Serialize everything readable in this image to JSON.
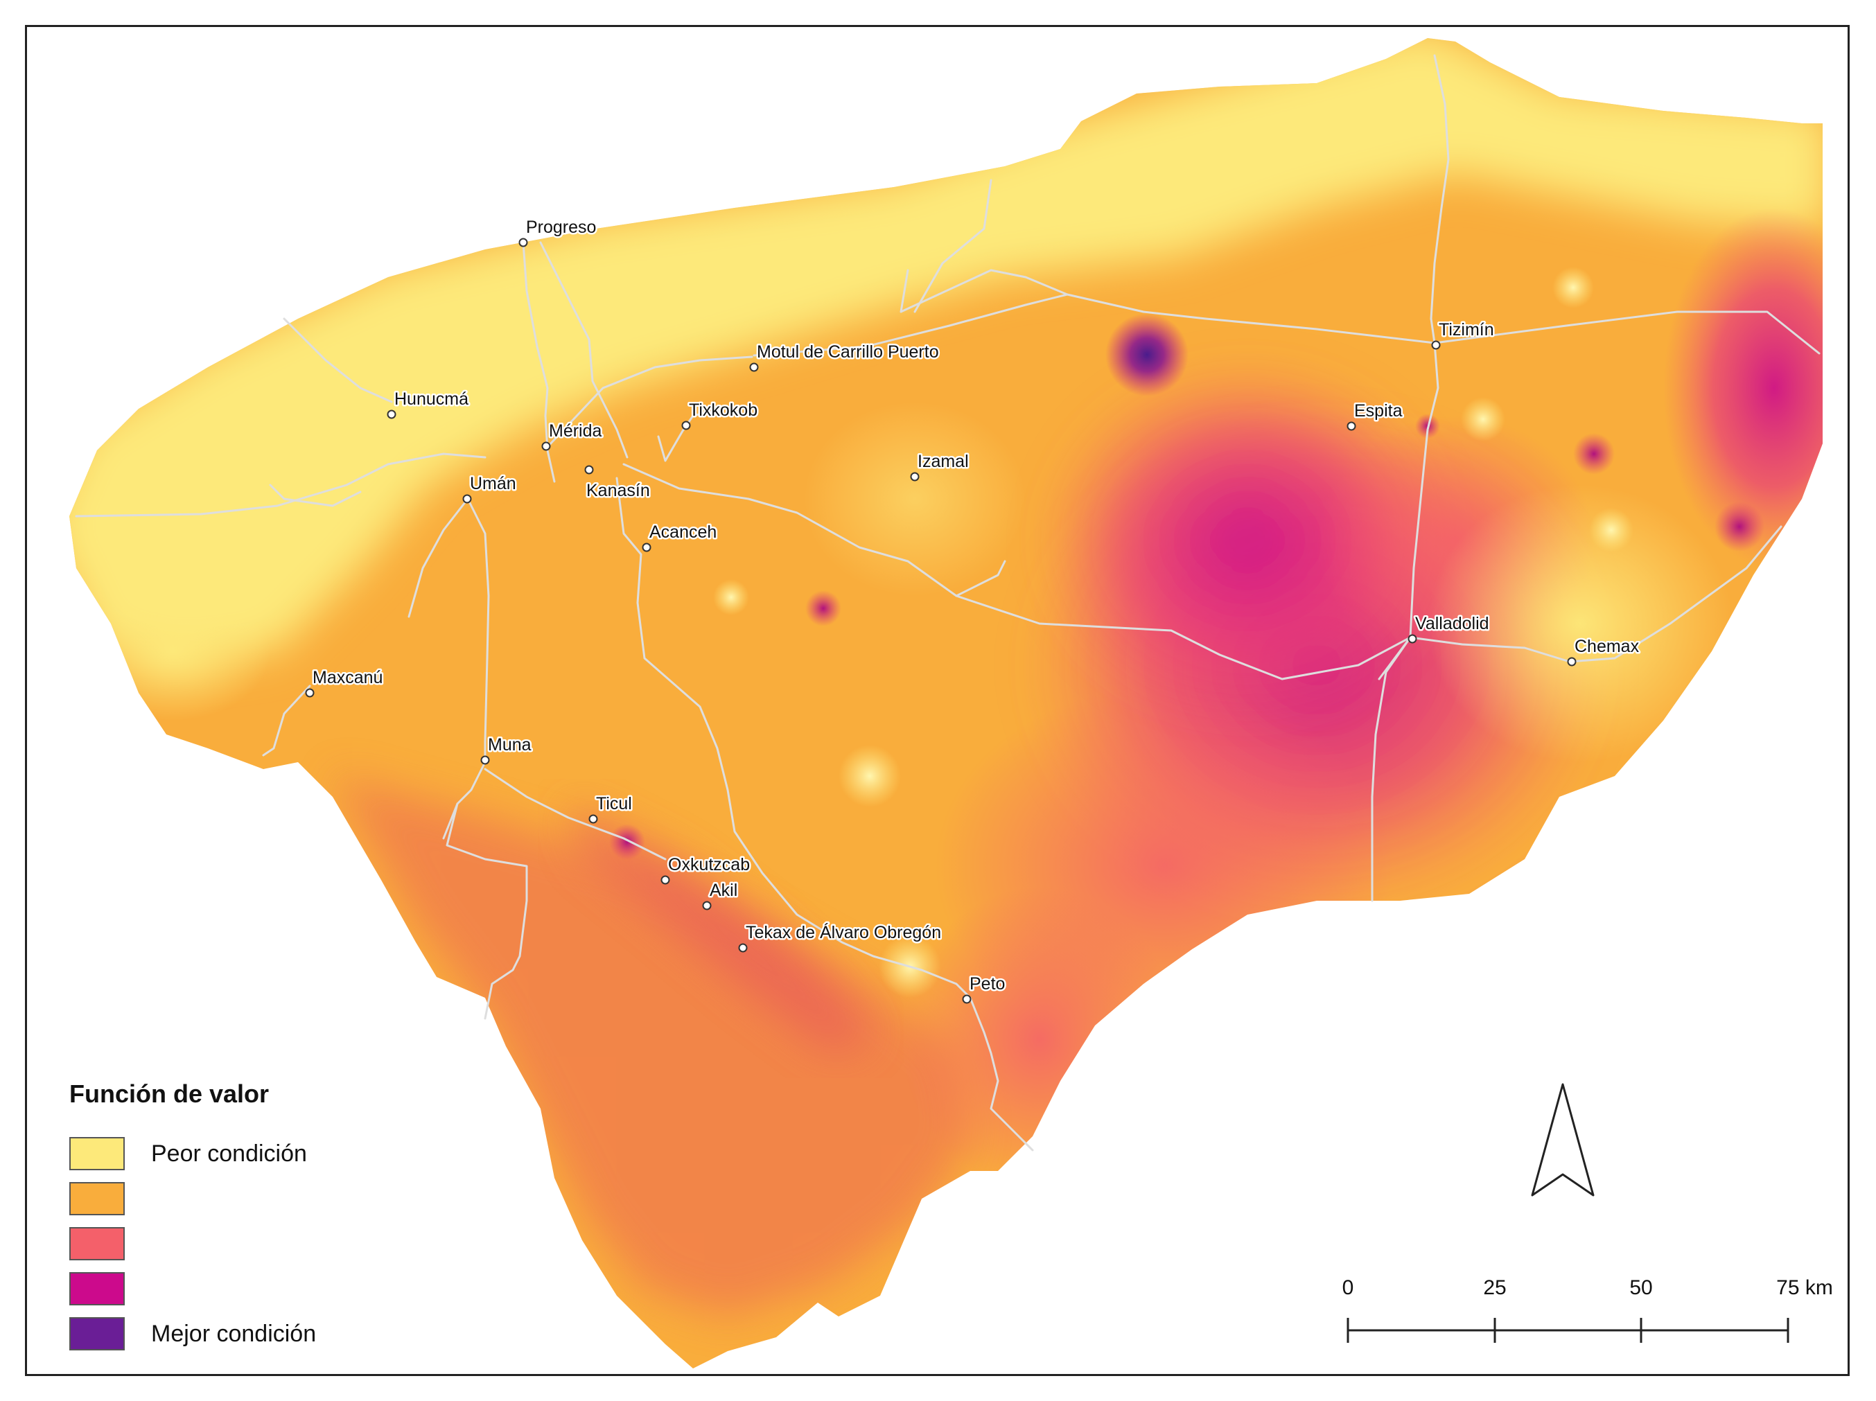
{
  "legend": {
    "title": "Función de valor",
    "items": [
      {
        "label": "Peor condición",
        "color": "#fde97a"
      },
      {
        "label": "",
        "color": "#f9ad3c"
      },
      {
        "label": "",
        "color": "#f4606a"
      },
      {
        "label": "",
        "color": "#cc0a8c"
      },
      {
        "label": "Mejor condición",
        "color": "#6a1e96"
      }
    ]
  },
  "scale_bar": {
    "ticks": [
      "0",
      "25",
      "50",
      "75 km"
    ]
  },
  "north_arrow": {
    "icon": "north-arrow-icon"
  },
  "cities": [
    {
      "name": "Progreso"
    },
    {
      "name": "Hunucmá"
    },
    {
      "name": "Mérida"
    },
    {
      "name": "Kanasín"
    },
    {
      "name": "Umán"
    },
    {
      "name": "Motul de Carrillo Puerto"
    },
    {
      "name": "Tixkokob"
    },
    {
      "name": "Izamal"
    },
    {
      "name": "Acanceh"
    },
    {
      "name": "Tizimín"
    },
    {
      "name": "Espita"
    },
    {
      "name": "Valladolid"
    },
    {
      "name": "Chemax"
    },
    {
      "name": "Maxcanú"
    },
    {
      "name": "Muna"
    },
    {
      "name": "Ticul"
    },
    {
      "name": "Oxkutzcab"
    },
    {
      "name": "Akil"
    },
    {
      "name": "Tekax de Álvaro Obregón"
    },
    {
      "name": "Peto"
    }
  ],
  "colors": {
    "worst": "#fde97a",
    "low": "#f9ad3c",
    "mid": "#f4606a",
    "high": "#cc0a8c",
    "best": "#6a1e96",
    "roads": "#d8d8d8"
  }
}
